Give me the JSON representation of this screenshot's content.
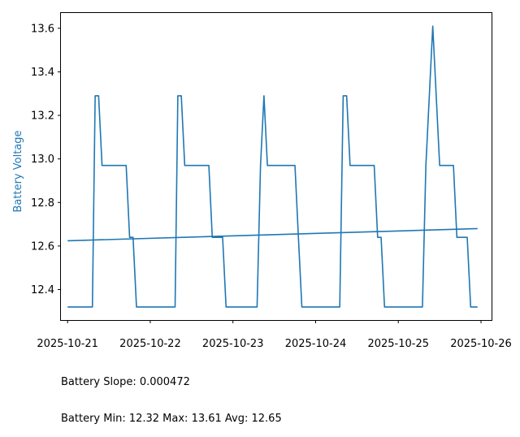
{
  "chart_data": {
    "type": "line",
    "xlabel": "",
    "ylabel": "Battery Voltage",
    "ylabel_color": "#1f77b4",
    "line_color": "#1f77b4",
    "grid": false,
    "xlim": [
      "2025-10-20 22:04",
      "2025-10-26 03:04"
    ],
    "ylim": [
      12.26,
      13.674
    ],
    "x_ticks": [
      "2025-10-21",
      "2025-10-22",
      "2025-10-23",
      "2025-10-24",
      "2025-10-25",
      "2025-10-26"
    ],
    "y_ticks": [
      12.4,
      12.6,
      12.8,
      13.0,
      13.2,
      13.4,
      13.6
    ],
    "series": [
      {
        "x": [
          "2025-10-21 00:00",
          "2025-10-21 07:12",
          "2025-10-21 08:00",
          "2025-10-21 09:00",
          "2025-10-21 10:00",
          "2025-10-21 17:00",
          "2025-10-21 18:00",
          "2025-10-21 19:00",
          "2025-10-21 20:00",
          "2025-10-22 00:00",
          "2025-10-22 07:12",
          "2025-10-22 08:00",
          "2025-10-22 09:00",
          "2025-10-22 10:00",
          "2025-10-22 17:00",
          "2025-10-22 18:00",
          "2025-10-22 21:00",
          "2025-10-22 22:00",
          "2025-10-23 00:00",
          "2025-10-23 07:00",
          "2025-10-23 08:00",
          "2025-10-23 09:00",
          "2025-10-23 10:00",
          "2025-10-23 17:00",
          "2025-10-23 18:00",
          "2025-10-23 19:00",
          "2025-10-23 20:00",
          "2025-10-24 00:00",
          "2025-10-24 07:00",
          "2025-10-24 08:00",
          "2025-10-24 09:00",
          "2025-10-24 10:00",
          "2025-10-24 17:00",
          "2025-10-24 18:00",
          "2025-10-24 19:00",
          "2025-10-24 20:00",
          "2025-10-25 00:00",
          "2025-10-25 07:00",
          "2025-10-25 08:00",
          "2025-10-25 10:00",
          "2025-10-25 12:00",
          "2025-10-25 16:00",
          "2025-10-25 17:00",
          "2025-10-25 20:00",
          "2025-10-25 21:00",
          "2025-10-25 23:00"
        ],
        "y": [
          12.32,
          12.32,
          13.29,
          13.29,
          12.97,
          12.97,
          12.64,
          12.64,
          12.32,
          12.32,
          12.32,
          13.29,
          13.29,
          12.97,
          12.97,
          12.64,
          12.64,
          12.32,
          12.32,
          12.32,
          12.97,
          13.29,
          12.97,
          12.97,
          12.97,
          12.64,
          12.32,
          12.32,
          12.32,
          13.29,
          13.29,
          12.97,
          12.97,
          12.64,
          12.64,
          12.32,
          12.32,
          12.32,
          12.97,
          13.61,
          12.97,
          12.97,
          12.64,
          12.64,
          12.32,
          12.32
        ]
      },
      {
        "x": [
          "2025-10-21 00:00",
          "2025-10-25 23:00"
        ],
        "y": [
          12.624,
          12.68
        ]
      }
    ]
  },
  "stats": {
    "slope_line": "Battery Slope: 0.000472",
    "minmax_line": "Battery Min: 12.32 Max: 13.61 Avg: 12.65"
  }
}
